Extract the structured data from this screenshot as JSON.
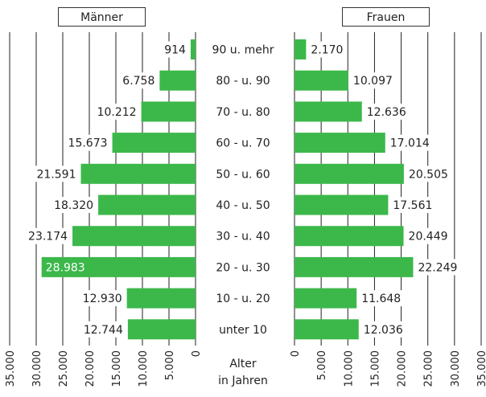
{
  "chart_data": {
    "type": "bar",
    "categories": [
      "90 u. mehr",
      "80 - u. 90",
      "70 - u. 80",
      "60 - u. 70",
      "50 - u. 60",
      "40 - u. 50",
      "30 - u. 40",
      "20 - u. 30",
      "10 - u. 20",
      "unter 10"
    ],
    "series": [
      {
        "name": "Männer",
        "values": [
          914,
          6758,
          10212,
          15673,
          21591,
          18320,
          23174,
          28983,
          12930,
          12744
        ],
        "labels": [
          "914",
          "6.758",
          "10.212",
          "15.673",
          "21.591",
          "18.320",
          "23.174",
          "28.983",
          "12.930",
          "12.744"
        ]
      },
      {
        "name": "Frauen",
        "values": [
          2170,
          10097,
          12636,
          17014,
          20505,
          17561,
          20449,
          22249,
          11648,
          12036
        ],
        "labels": [
          "2.170",
          "10.097",
          "12.636",
          "17.014",
          "20.505",
          "17.561",
          "20.449",
          "22.249",
          "11.648",
          "12.036"
        ]
      }
    ],
    "x_ticks": [
      0,
      5000,
      10000,
      15000,
      20000,
      25000,
      30000,
      35000
    ],
    "x_tick_labels": [
      "0",
      "5.000",
      "10.000",
      "15.000",
      "20.000",
      "25.000",
      "30.000",
      "35.000"
    ],
    "xlim": [
      0,
      35000
    ],
    "category_axis_title": [
      "Alter",
      "in Jahren"
    ],
    "bar_color": "#3cb84a",
    "grid": true
  }
}
